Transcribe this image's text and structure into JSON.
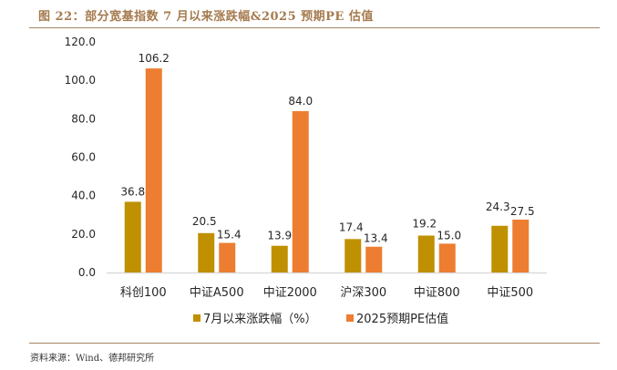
{
  "header": {
    "title": "图 22：部分宽基指数 7 月以来涨跌幅&2025 预期PE 估值"
  },
  "footer": {
    "source": "资料来源：Wind、德邦研究所"
  },
  "colors": {
    "series1": "#bf9000",
    "series2": "#ed7d31",
    "axis": "#d9d9d9",
    "rule": "#a58566",
    "title": "#a57a4d"
  },
  "chart_data": {
    "type": "bar",
    "title": "图 22：部分宽基指数 7 月以来涨跌幅&2025 预期PE 估值",
    "xlabel": "",
    "ylabel": "",
    "ylim": [
      0,
      120
    ],
    "yticks": [
      "0.0",
      "20.0",
      "40.0",
      "60.0",
      "80.0",
      "100.0",
      "120.0"
    ],
    "ytick_values": [
      0,
      20,
      40,
      60,
      80,
      100,
      120
    ],
    "grid": false,
    "legend_position": "bottom",
    "categories": [
      "科创100",
      "中证A500",
      "中证2000",
      "沪深300",
      "中证800",
      "中证500"
    ],
    "series": [
      {
        "name": "7月以来涨跌幅（%）",
        "values": [
          36.8,
          20.5,
          13.9,
          17.4,
          19.2,
          24.3
        ],
        "labels": [
          "36.8",
          "20.5",
          "13.9",
          "17.4",
          "19.2",
          "24.3"
        ]
      },
      {
        "name": "2025预期PE估值",
        "values": [
          106.2,
          15.4,
          84.0,
          13.4,
          15.0,
          27.5
        ],
        "labels": [
          "106.2",
          "15.4",
          "84.0",
          "13.4",
          "15.0",
          "27.5"
        ]
      }
    ]
  }
}
